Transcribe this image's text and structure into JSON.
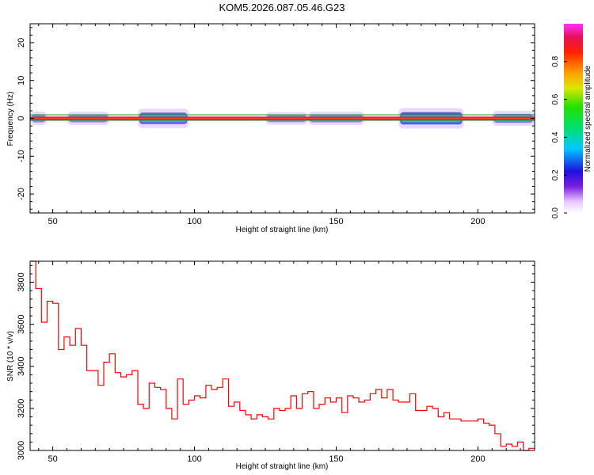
{
  "title": "KOM5.2026.087.05.46.G23",
  "colors": {
    "axis": "#000000",
    "snr_line": "#ff0000",
    "band_core": "#e8123c",
    "band_edge": "#1a9a3a"
  },
  "chart_data": [
    {
      "type": "heatmap",
      "name": "spectrogram",
      "xlabel": "Height of straight line (km)",
      "ylabel": "Frequency (Hz)",
      "xlim": [
        42,
        220
      ],
      "ylim": [
        -25,
        25
      ],
      "x_ticks": [
        50,
        100,
        150,
        200
      ],
      "y_ticks": [
        20,
        10,
        0,
        -10,
        -20
      ],
      "y_tick_labels": [
        "20",
        "10",
        "0",
        "-10",
        "-20"
      ],
      "band_center_hz": 0,
      "band_halfwidth_hz": 0.6,
      "spread_segments": [
        {
          "from": 42,
          "to": 48,
          "level": 0.5
        },
        {
          "from": 55,
          "to": 70,
          "level": 0.5
        },
        {
          "from": 80,
          "to": 98,
          "level": 0.9
        },
        {
          "from": 125,
          "to": 140,
          "level": 0.45
        },
        {
          "from": 140,
          "to": 160,
          "level": 0.5
        },
        {
          "from": 172,
          "to": 195,
          "level": 1.0
        },
        {
          "from": 205,
          "to": 220,
          "level": 0.6
        }
      ],
      "colorbar": {
        "label": "Normalized spectral amplitude",
        "ticks": [
          0.0,
          0.2,
          0.4,
          0.6,
          0.8
        ],
        "tick_labels": [
          "0.0",
          "0.2",
          "0.4",
          "0.6",
          "0.8"
        ],
        "range": [
          0,
          1
        ]
      }
    },
    {
      "type": "line",
      "name": "snr",
      "step": true,
      "xlabel": "Height of straight line (km)",
      "ylabel": "SNR (10 * v/v)",
      "xlim": [
        42,
        220
      ],
      "ylim": [
        3000,
        3900
      ],
      "x_ticks": [
        50,
        100,
        150,
        200
      ],
      "y_ticks": [
        3000,
        3200,
        3400,
        3600,
        3800
      ],
      "y_tick_labels": [
        "3000",
        "3200",
        "3400",
        "3600",
        "3800"
      ],
      "step_width": 2,
      "x": [
        42,
        44,
        46,
        48,
        50,
        52,
        54,
        56,
        58,
        60,
        62,
        64,
        66,
        68,
        70,
        72,
        74,
        76,
        78,
        80,
        82,
        84,
        86,
        88,
        90,
        92,
        94,
        96,
        98,
        100,
        102,
        104,
        106,
        108,
        110,
        112,
        114,
        116,
        118,
        120,
        122,
        124,
        126,
        128,
        130,
        132,
        134,
        136,
        138,
        140,
        142,
        144,
        146,
        148,
        150,
        152,
        154,
        156,
        158,
        160,
        162,
        164,
        166,
        168,
        170,
        172,
        174,
        176,
        178,
        180,
        182,
        184,
        186,
        188,
        190,
        192,
        194,
        196,
        198,
        200,
        202,
        204,
        206,
        208,
        210,
        212,
        214,
        216,
        218
      ],
      "y": [
        3900,
        3770,
        3610,
        3710,
        3700,
        3480,
        3540,
        3500,
        3580,
        3500,
        3380,
        3380,
        3310,
        3420,
        3460,
        3370,
        3350,
        3360,
        3380,
        3220,
        3200,
        3320,
        3300,
        3290,
        3200,
        3150,
        3340,
        3220,
        3240,
        3260,
        3250,
        3310,
        3290,
        3300,
        3340,
        3210,
        3230,
        3190,
        3170,
        3150,
        3170,
        3160,
        3150,
        3200,
        3190,
        3200,
        3260,
        3200,
        3270,
        3280,
        3200,
        3220,
        3250,
        3230,
        3250,
        3180,
        3260,
        3250,
        3230,
        3240,
        3270,
        3290,
        3250,
        3290,
        3240,
        3230,
        3230,
        3270,
        3190,
        3190,
        3210,
        3200,
        3160,
        3180,
        3150,
        3150,
        3140,
        3140,
        3140,
        3150,
        3130,
        3120,
        3080,
        3020,
        3030,
        3020,
        3040,
        3000,
        3010
      ]
    }
  ]
}
